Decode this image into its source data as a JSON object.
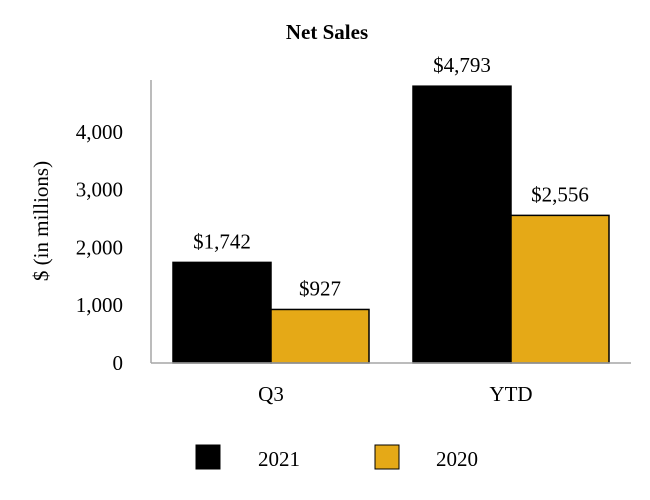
{
  "chart_data": {
    "type": "bar",
    "title": "Net Sales",
    "xlabel": "",
    "ylabel": "$ (in millions)",
    "categories": [
      "Q3",
      "YTD"
    ],
    "series": [
      {
        "name": "2021",
        "color": "#000000",
        "values": [
          1742,
          4793
        ],
        "labels": [
          "$1,742",
          "$4,793"
        ]
      },
      {
        "name": "2020",
        "color": "#E5A917",
        "values": [
          927,
          2556
        ],
        "labels": [
          "$927",
          "$2,556"
        ]
      }
    ],
    "yticks": [
      0,
      1000,
      2000,
      3000,
      4000
    ],
    "ytick_labels": [
      "0",
      "1,000",
      "2,000",
      "3,000",
      "4,000"
    ],
    "ylim": [
      0,
      4900
    ],
    "grid": false,
    "legend_position": "bottom"
  }
}
